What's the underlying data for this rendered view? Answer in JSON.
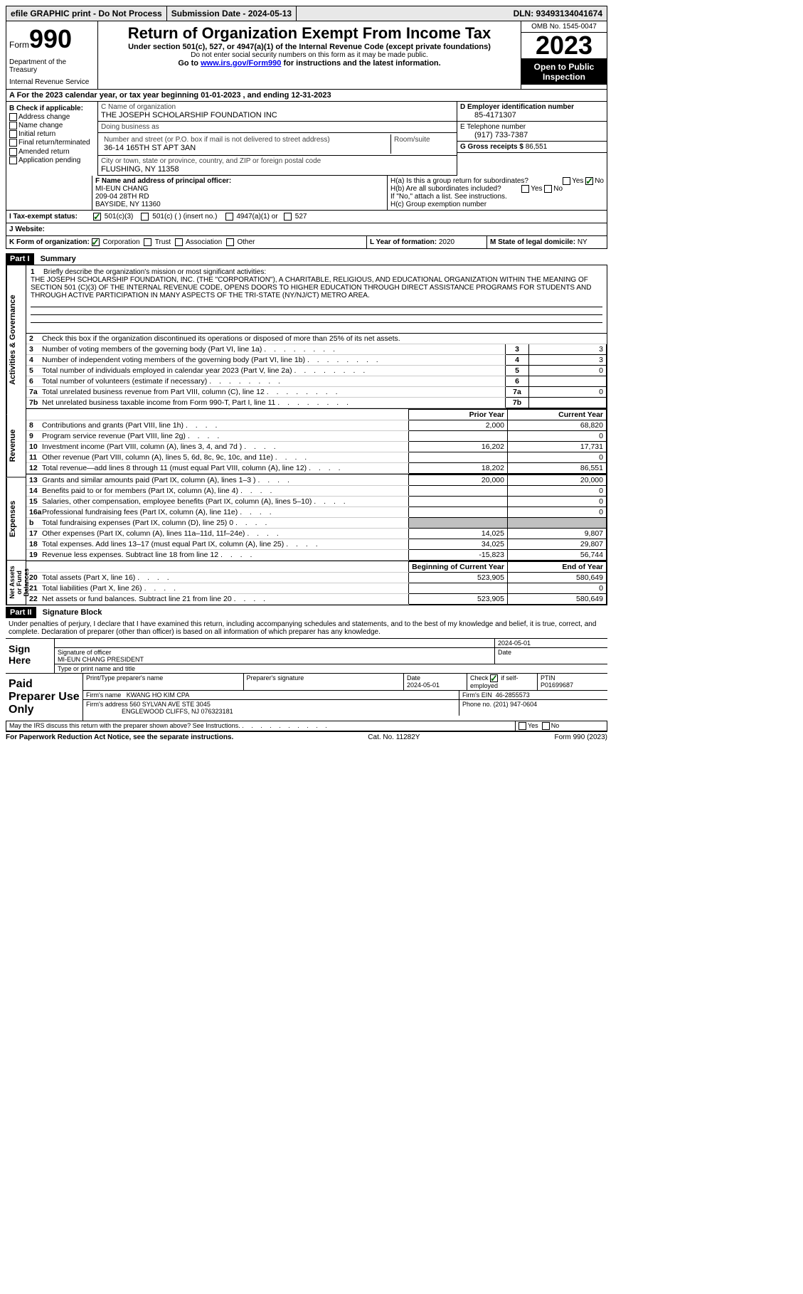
{
  "top_bar": {
    "efile": "efile GRAPHIC print - Do Not Process",
    "submission_label": "Submission Date - 2024-05-13",
    "dln": "DLN: 93493134041674"
  },
  "header": {
    "form_word": "Form",
    "form_num": "990",
    "title": "Return of Organization Exempt From Income Tax",
    "subtitle": "Under section 501(c), 527, or 4947(a)(1) of the Internal Revenue Code (except private foundations)",
    "ssn_warning": "Do not enter social security numbers on this form as it may be made public.",
    "goto_prefix": "Go to ",
    "goto_link": "www.irs.gov/Form990",
    "goto_suffix": " for instructions and the latest information.",
    "dept": "Department of the Treasury",
    "irs": "Internal Revenue Service",
    "omb": "OMB No. 1545-0047",
    "year": "2023",
    "inspection": "Open to Public Inspection"
  },
  "section_a": "A For the 2023 calendar year, or tax year beginning 01-01-2023    , and ending 12-31-2023",
  "section_b": {
    "label": "B Check if applicable:",
    "items": [
      "Address change",
      "Name change",
      "Initial return",
      "Final return/terminated",
      "Amended return",
      "Application pending"
    ]
  },
  "section_c": {
    "name_label": "C Name of organization",
    "name": "THE JOSEPH SCHOLARSHIP FOUNDATION INC",
    "dba_label": "Doing business as",
    "dba": "",
    "street_label": "Number and street (or P.O. box if mail is not delivered to street address)",
    "room_label": "Room/suite",
    "street": "36-14 165TH ST APT 3AN",
    "city_label": "City or town, state or province, country, and ZIP or foreign postal code",
    "city": "FLUSHING, NY  11358"
  },
  "section_d": {
    "label": "D Employer identification number",
    "value": "85-4171307"
  },
  "section_e": {
    "label": "E Telephone number",
    "value": "(917) 733-7387"
  },
  "section_g": {
    "label": "G Gross receipts $",
    "value": "86,551"
  },
  "section_f": {
    "label": "F Name and address of principal officer:",
    "name": "MI-EUN CHANG",
    "street": "209-04 28TH RD",
    "city": "BAYSIDE, NY  11360"
  },
  "section_h": {
    "ha": "H(a)  Is this a group return for subordinates?",
    "hb": "H(b)  Are all subordinates included?",
    "hb_note": "If \"No,\" attach a list. See instructions.",
    "hc": "H(c)  Group exemption number",
    "yes": "Yes",
    "no": "No"
  },
  "section_i": {
    "label": "I  Tax-exempt status:",
    "opts": [
      "501(c)(3)",
      "501(c) (  ) (insert no.)",
      "4947(a)(1) or",
      "527"
    ]
  },
  "section_j": {
    "label": "J  Website:",
    "value": ""
  },
  "section_k": {
    "label": "K Form of organization:",
    "opts": [
      "Corporation",
      "Trust",
      "Association",
      "Other"
    ]
  },
  "section_l": {
    "label": "L Year of formation:",
    "value": "2020"
  },
  "section_m": {
    "label": "M State of legal domicile:",
    "value": "NY"
  },
  "part1": {
    "header": "Part I",
    "title": "Summary",
    "line1_label": "Briefly describe the organization's mission or most significant activities:",
    "mission": "THE JOSEPH SCHOLARSHIP FOUNDATION, INC. (THE \"CORPORATION\"), A CHARITABLE, RELIGIOUS, AND EDUCATIONAL ORGANIZATION WITHIN THE MEANING OF SECTION 501 (C)(3) OF THE INTERNAL REVENUE CODE, OPENS DOORS TO HIGHER EDUCATION THROUGH DIRECT ASSISTANCE PROGRAMS FOR STUDENTS AND THROUGH ACTIVE PARTICIPATION IN MANY ASPECTS OF THE TRI-STATE (NY/NJ/CT) METRO AREA.",
    "line2": "Check this box       if the organization discontinued its operations or disposed of more than 25% of its net assets.",
    "governance_rows": [
      {
        "n": "3",
        "desc": "Number of voting members of the governing body (Part VI, line 1a)",
        "val": "3"
      },
      {
        "n": "4",
        "desc": "Number of independent voting members of the governing body (Part VI, line 1b)",
        "val": "3"
      },
      {
        "n": "5",
        "desc": "Total number of individuals employed in calendar year 2023 (Part V, line 2a)",
        "val": "0"
      },
      {
        "n": "6",
        "desc": "Total number of volunteers (estimate if necessary)",
        "val": ""
      },
      {
        "n": "7a",
        "desc": "Total unrelated business revenue from Part VIII, column (C), line 12",
        "val": "0"
      },
      {
        "n": "7b",
        "desc": "Net unrelated business taxable income from Form 990-T, Part I, line 11",
        "val": ""
      }
    ],
    "prior_year_hdr": "Prior Year",
    "current_year_hdr": "Current Year",
    "revenue_rows": [
      {
        "n": "8",
        "desc": "Contributions and grants (Part VIII, line 1h)",
        "prior": "2,000",
        "curr": "68,820"
      },
      {
        "n": "9",
        "desc": "Program service revenue (Part VIII, line 2g)",
        "prior": "",
        "curr": "0"
      },
      {
        "n": "10",
        "desc": "Investment income (Part VIII, column (A), lines 3, 4, and 7d )",
        "prior": "16,202",
        "curr": "17,731"
      },
      {
        "n": "11",
        "desc": "Other revenue (Part VIII, column (A), lines 5, 6d, 8c, 9c, 10c, and 11e)",
        "prior": "",
        "curr": "0"
      },
      {
        "n": "12",
        "desc": "Total revenue—add lines 8 through 11 (must equal Part VIII, column (A), line 12)",
        "prior": "18,202",
        "curr": "86,551"
      }
    ],
    "expense_rows": [
      {
        "n": "13",
        "desc": "Grants and similar amounts paid (Part IX, column (A), lines 1–3 )",
        "prior": "20,000",
        "curr": "20,000"
      },
      {
        "n": "14",
        "desc": "Benefits paid to or for members (Part IX, column (A), line 4)",
        "prior": "",
        "curr": "0"
      },
      {
        "n": "15",
        "desc": "Salaries, other compensation, employee benefits (Part IX, column (A), lines 5–10)",
        "prior": "",
        "curr": "0"
      },
      {
        "n": "16a",
        "desc": "Professional fundraising fees (Part IX, column (A), line 11e)",
        "prior": "",
        "curr": "0"
      },
      {
        "n": "b",
        "desc": "Total fundraising expenses (Part IX, column (D), line 25) 0",
        "prior": "shaded",
        "curr": "shaded"
      },
      {
        "n": "17",
        "desc": "Other expenses (Part IX, column (A), lines 11a–11d, 11f–24e)",
        "prior": "14,025",
        "curr": "9,807"
      },
      {
        "n": "18",
        "desc": "Total expenses. Add lines 13–17 (must equal Part IX, column (A), line 25)",
        "prior": "34,025",
        "curr": "29,807"
      },
      {
        "n": "19",
        "desc": "Revenue less expenses. Subtract line 18 from line 12",
        "prior": "-15,823",
        "curr": "56,744"
      }
    ],
    "begin_year_hdr": "Beginning of Current Year",
    "end_year_hdr": "End of Year",
    "netassets_rows": [
      {
        "n": "20",
        "desc": "Total assets (Part X, line 16)",
        "prior": "523,905",
        "curr": "580,649"
      },
      {
        "n": "21",
        "desc": "Total liabilities (Part X, line 26)",
        "prior": "",
        "curr": "0"
      },
      {
        "n": "22",
        "desc": "Net assets or fund balances. Subtract line 21 from line 20",
        "prior": "523,905",
        "curr": "580,649"
      }
    ],
    "vert_activities": "Activities & Governance",
    "vert_revenue": "Revenue",
    "vert_expenses": "Expenses",
    "vert_netassets": "Net Assets or Fund Balances"
  },
  "part2": {
    "header": "Part II",
    "title": "Signature Block",
    "declare": "Under penalties of perjury, I declare that I have examined this return, including accompanying schedules and statements, and to the best of my knowledge and belief, it is true, correct, and complete. Declaration of preparer (other than officer) is based on all information of which preparer has any knowledge.",
    "sign_here": "Sign Here",
    "sig_officer_lbl": "Signature of officer",
    "sig_officer": "MI-EUN CHANG  PRESIDENT",
    "sig_type_lbl": "Type or print name and title",
    "sig_date": "2024-05-01",
    "date_lbl": "Date",
    "paid_preparer": "Paid Preparer Use Only",
    "print_name_lbl": "Print/Type preparer's name",
    "prep_sig_lbl": "Preparer's signature",
    "prep_date": "2024-05-01",
    "check_if": "Check",
    "self_emp": "if self-employed",
    "ptin_lbl": "PTIN",
    "ptin": "P01699687",
    "firm_name_lbl": "Firm's name",
    "firm_name": "KWANG HO KIM CPA",
    "firm_ein_lbl": "Firm's EIN",
    "firm_ein": "46-2855573",
    "firm_addr_lbl": "Firm's address",
    "firm_addr1": "560 SYLVAN AVE STE 3045",
    "firm_addr2": "ENGLEWOOD CLIFFS, NJ  076323181",
    "phone_lbl": "Phone no.",
    "phone": "(201) 947-0604",
    "discuss": "May the IRS discuss this return with the preparer shown above? See Instructions."
  },
  "footer": {
    "paperwork": "For Paperwork Reduction Act Notice, see the separate instructions.",
    "catno": "Cat. No. 11282Y",
    "formref": "Form 990 (2023)"
  }
}
